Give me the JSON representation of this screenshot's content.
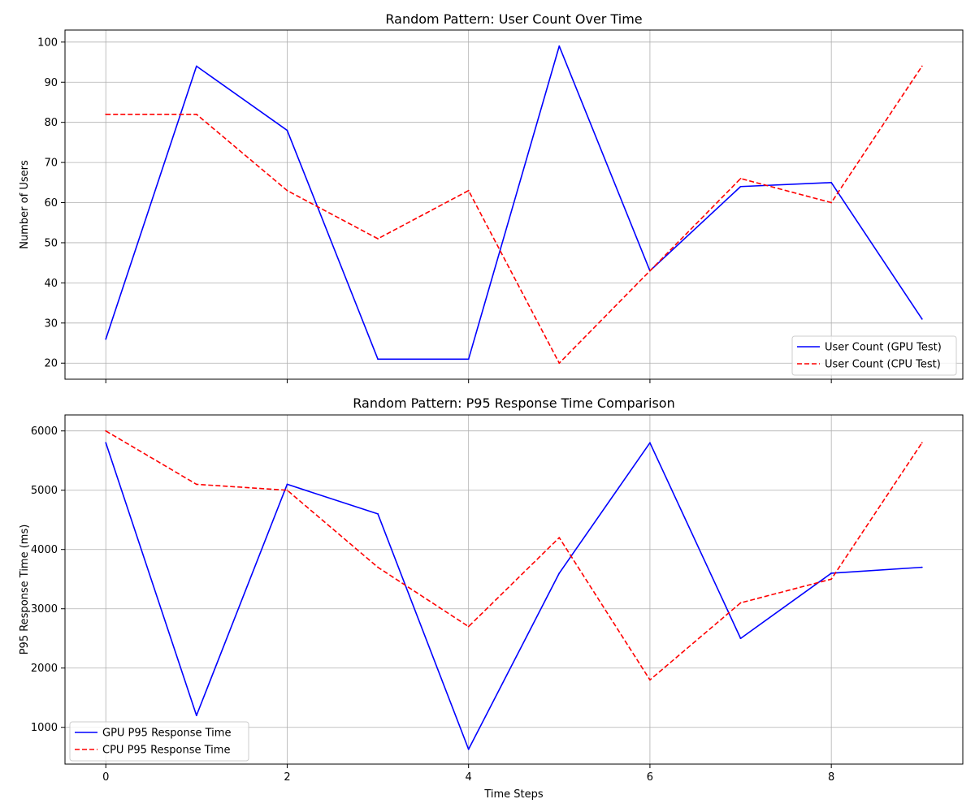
{
  "chart_data": [
    {
      "type": "line",
      "title": "Random Pattern: User Count Over Time",
      "xlabel": "",
      "ylabel": "Number of Users",
      "x": [
        0,
        1,
        2,
        3,
        4,
        5,
        6,
        7,
        8,
        9
      ],
      "xlim": [
        -0.45,
        9.45
      ],
      "ylim": [
        16.0,
        103.0
      ],
      "xticks": [
        0,
        2,
        4,
        6,
        8
      ],
      "yticks": [
        20,
        30,
        40,
        50,
        60,
        70,
        80,
        90,
        100
      ],
      "show_xtick_labels": false,
      "grid": true,
      "legend_position": "lower-right",
      "series": [
        {
          "name": "User Count (GPU Test)",
          "color": "#0000ff",
          "dash": "solid",
          "values": [
            26,
            94,
            78,
            21,
            21,
            99,
            43,
            64,
            65,
            31
          ]
        },
        {
          "name": "User Count (CPU Test)",
          "color": "#ff0000",
          "dash": "dashed",
          "values": [
            82,
            82,
            63,
            51,
            63,
            20,
            43,
            66,
            60,
            94
          ]
        }
      ]
    },
    {
      "type": "line",
      "title": "Random Pattern: P95 Response Time Comparison",
      "xlabel": "Time Steps",
      "ylabel": "P95 Response Time (ms)",
      "x": [
        0,
        1,
        2,
        3,
        4,
        5,
        6,
        7,
        8,
        9
      ],
      "xlim": [
        -0.45,
        9.45
      ],
      "ylim": [
        380,
        6270
      ],
      "xticks": [
        0,
        2,
        4,
        6,
        8
      ],
      "yticks": [
        1000,
        2000,
        3000,
        4000,
        5000,
        6000
      ],
      "show_xtick_labels": true,
      "grid": true,
      "legend_position": "lower-left",
      "series": [
        {
          "name": "GPU P95 Response Time",
          "color": "#0000ff",
          "dash": "solid",
          "values": [
            5800,
            1200,
            5100,
            4600,
            630,
            3600,
            5800,
            2500,
            3600,
            3700
          ]
        },
        {
          "name": "CPU P95 Response Time",
          "color": "#ff0000",
          "dash": "dashed",
          "values": [
            6000,
            5100,
            5000,
            3700,
            2700,
            4200,
            1800,
            3100,
            3500,
            5800
          ]
        }
      ]
    }
  ]
}
